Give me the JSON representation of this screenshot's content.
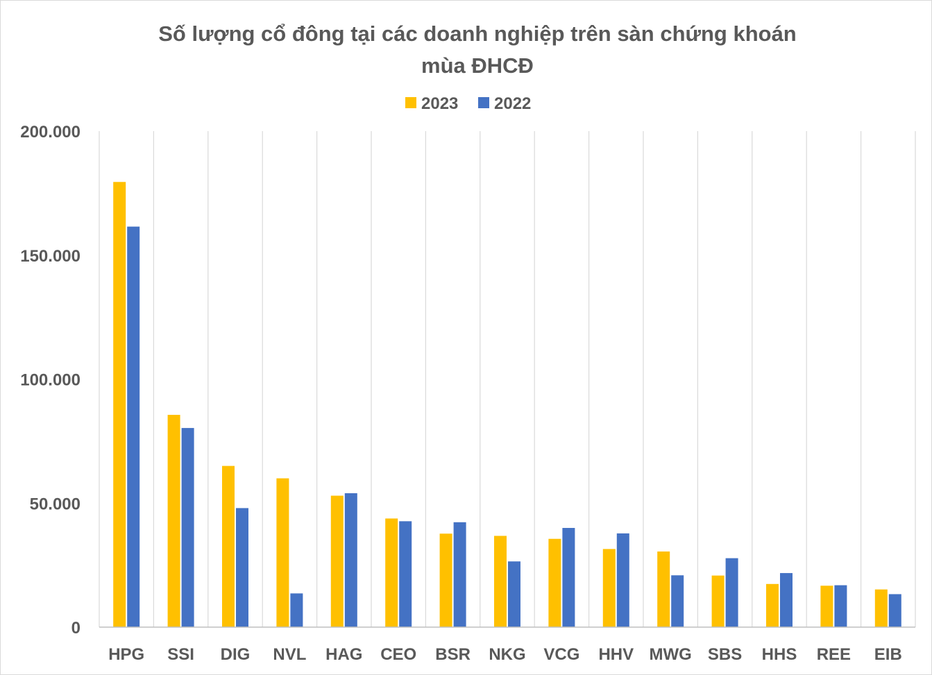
{
  "chart_data": {
    "type": "bar",
    "title_line1": "Số lượng cổ đông tại các doanh nghiệp trên sàn chứng khoán",
    "title_line2": "mùa ĐHCĐ",
    "categories": [
      "HPG",
      "SSI",
      "DIG",
      "NVL",
      "HAG",
      "CEO",
      "BSR",
      "NKG",
      "VCG",
      "HHV",
      "MWG",
      "SBS",
      "HHS",
      "REE",
      "EIB"
    ],
    "series": [
      {
        "name": "2023",
        "color": "#FFC000",
        "values": [
          179500,
          85600,
          65000,
          60000,
          53000,
          43800,
          37700,
          36800,
          35600,
          31500,
          30500,
          20800,
          17400,
          16700,
          15200
        ]
      },
      {
        "name": "2022",
        "color": "#4472C4",
        "values": [
          161500,
          80300,
          48000,
          13600,
          54000,
          42700,
          42300,
          26500,
          40000,
          37800,
          20900,
          27800,
          21800,
          16900,
          13300
        ]
      }
    ],
    "ylim": [
      0,
      200000
    ],
    "yticks": [
      0,
      50000,
      100000,
      150000,
      200000
    ],
    "ytick_labels": [
      "0",
      "50.000",
      "100.000",
      "150.000",
      "200.000"
    ],
    "grid": "vertical",
    "legend": "top-center"
  }
}
